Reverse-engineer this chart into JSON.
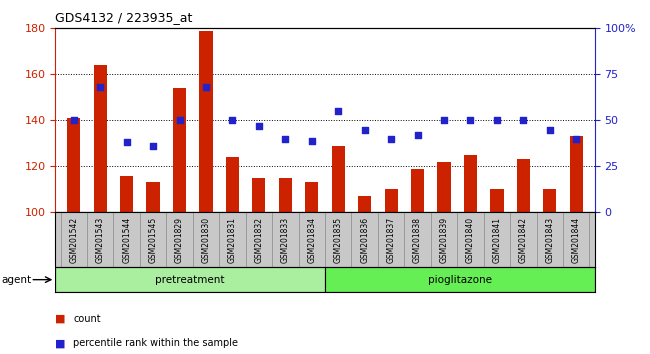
{
  "title": "GDS4132 / 223935_at",
  "samples": [
    "GSM201542",
    "GSM201543",
    "GSM201544",
    "GSM201545",
    "GSM201829",
    "GSM201830",
    "GSM201831",
    "GSM201832",
    "GSM201833",
    "GSM201834",
    "GSM201835",
    "GSM201836",
    "GSM201837",
    "GSM201838",
    "GSM201839",
    "GSM201840",
    "GSM201841",
    "GSM201842",
    "GSM201843",
    "GSM201844"
  ],
  "counts": [
    141,
    164,
    116,
    113,
    154,
    179,
    124,
    115,
    115,
    113,
    129,
    107,
    110,
    119,
    122,
    125,
    110,
    123,
    110,
    133
  ],
  "percentiles": [
    50,
    68,
    38,
    36,
    50,
    68,
    50,
    47,
    40,
    39,
    55,
    45,
    40,
    42,
    50,
    50,
    50,
    50,
    45,
    40
  ],
  "pretreatment_count": 10,
  "pioglitazone_count": 10,
  "group_labels": [
    "pretreatment",
    "pioglitazone"
  ],
  "agent_label": "agent",
  "count_color": "#cc2200",
  "percentile_color": "#2222cc",
  "pretreatment_color": "#aaeea0",
  "pioglitazone_color": "#66ee55",
  "ylim_left": [
    100,
    180
  ],
  "ylim_right": [
    0,
    100
  ],
  "yticks_left": [
    100,
    120,
    140,
    160,
    180
  ],
  "yticks_right": [
    0,
    25,
    50,
    75,
    100
  ],
  "ytick_labels_right": [
    "0",
    "25",
    "50",
    "75",
    "100%"
  ],
  "bar_width": 0.5,
  "tick_bg_color": "#c8c8c8",
  "divider_color": "#888888"
}
